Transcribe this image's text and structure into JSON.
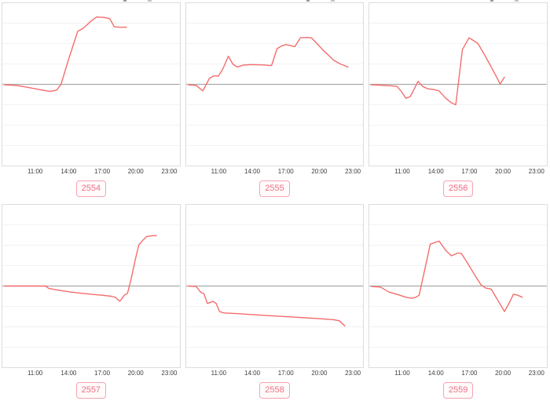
{
  "page": {
    "background": "#ffffff"
  },
  "colors": {
    "line": "#f56c6c",
    "zero_line": "#aaaaaa",
    "grid_line": "#f2f2f2",
    "chart_border": "#dcdcdc",
    "tick_text": "#3d3d3d",
    "badge_border": "#f6a3b3",
    "badge_text": "#ee7082"
  },
  "chart_data": [
    {
      "name": "2554",
      "type": "line",
      "x_unit": "hour_of_day",
      "x_range": [
        8,
        24
      ],
      "x_ticks": [
        "11:00",
        "14:00",
        "17:00",
        "20:00",
        "23:00"
      ],
      "x_tick_hours": [
        11,
        14,
        17,
        20,
        23
      ],
      "y_range": [
        -4,
        4
      ],
      "baseline": 0,
      "grid_step": 1,
      "points": [
        [
          8.2,
          -0.02
        ],
        [
          9.2,
          -0.05
        ],
        [
          10.0,
          -0.12
        ],
        [
          11.0,
          -0.22
        ],
        [
          12.3,
          -0.35
        ],
        [
          12.9,
          -0.28
        ],
        [
          13.3,
          0.0
        ],
        [
          13.9,
          1.1
        ],
        [
          14.8,
          2.6
        ],
        [
          15.3,
          2.75
        ],
        [
          16.0,
          3.1
        ],
        [
          16.5,
          3.3
        ],
        [
          17.2,
          3.28
        ],
        [
          17.7,
          3.22
        ],
        [
          18.1,
          2.82
        ],
        [
          18.6,
          2.8
        ],
        [
          19.2,
          2.8
        ]
      ]
    },
    {
      "name": "2555",
      "type": "line",
      "x_unit": "hour_of_day",
      "x_range": [
        8,
        24
      ],
      "x_ticks": [
        "11:00",
        "14:00",
        "17:00",
        "20:00",
        "23:00"
      ],
      "x_tick_hours": [
        11,
        14,
        17,
        20,
        23
      ],
      "y_range": [
        -4,
        4
      ],
      "baseline": 0,
      "grid_step": 1,
      "points": [
        [
          8.2,
          -0.02
        ],
        [
          8.9,
          -0.05
        ],
        [
          9.5,
          -0.32
        ],
        [
          10.1,
          0.3
        ],
        [
          10.5,
          0.42
        ],
        [
          10.9,
          0.4
        ],
        [
          11.3,
          0.75
        ],
        [
          11.8,
          1.38
        ],
        [
          12.2,
          1.0
        ],
        [
          12.6,
          0.85
        ],
        [
          13.2,
          0.95
        ],
        [
          14.0,
          0.97
        ],
        [
          15.0,
          0.95
        ],
        [
          15.7,
          0.92
        ],
        [
          16.2,
          1.75
        ],
        [
          16.6,
          1.88
        ],
        [
          17.0,
          1.95
        ],
        [
          17.4,
          1.9
        ],
        [
          17.8,
          1.85
        ],
        [
          18.3,
          2.28
        ],
        [
          18.9,
          2.3
        ],
        [
          19.3,
          2.28
        ],
        [
          19.8,
          2.0
        ],
        [
          20.3,
          1.7
        ],
        [
          20.8,
          1.45
        ],
        [
          21.3,
          1.18
        ],
        [
          21.9,
          1.0
        ],
        [
          22.6,
          0.85
        ]
      ]
    },
    {
      "name": "2556",
      "type": "line",
      "x_unit": "hour_of_day",
      "x_range": [
        8,
        24
      ],
      "x_ticks": [
        "11:00",
        "14:00",
        "17:00",
        "20:00",
        "23:00"
      ],
      "x_tick_hours": [
        11,
        14,
        17,
        20,
        23
      ],
      "y_range": [
        -4,
        4
      ],
      "baseline": 0,
      "grid_step": 1,
      "points": [
        [
          8.2,
          -0.02
        ],
        [
          9.3,
          -0.05
        ],
        [
          10.1,
          -0.08
        ],
        [
          10.5,
          -0.1
        ],
        [
          10.9,
          -0.35
        ],
        [
          11.3,
          -0.68
        ],
        [
          11.7,
          -0.6
        ],
        [
          12.1,
          -0.18
        ],
        [
          12.4,
          0.15
        ],
        [
          12.8,
          -0.1
        ],
        [
          13.3,
          -0.22
        ],
        [
          13.8,
          -0.25
        ],
        [
          14.3,
          -0.32
        ],
        [
          14.9,
          -0.68
        ],
        [
          15.4,
          -0.9
        ],
        [
          15.8,
          -1.0
        ],
        [
          16.4,
          1.7
        ],
        [
          17.0,
          2.28
        ],
        [
          17.4,
          2.15
        ],
        [
          17.8,
          2.0
        ],
        [
          18.4,
          1.45
        ],
        [
          19.0,
          0.85
        ],
        [
          19.5,
          0.35
        ],
        [
          19.8,
          0.02
        ],
        [
          20.2,
          0.35
        ]
      ]
    },
    {
      "name": "2557",
      "type": "line",
      "x_unit": "hour_of_day",
      "x_range": [
        8,
        24
      ],
      "x_ticks": [
        "11:00",
        "14:00",
        "17:00",
        "20:00",
        "23:00"
      ],
      "x_tick_hours": [
        11,
        14,
        17,
        20,
        23
      ],
      "y_range": [
        -4,
        4
      ],
      "baseline": 0,
      "grid_step": 1,
      "points": [
        [
          8.2,
          0.0
        ],
        [
          9.5,
          0.0
        ],
        [
          10.8,
          0.0
        ],
        [
          11.9,
          0.0
        ],
        [
          12.2,
          -0.12
        ],
        [
          13.0,
          -0.2
        ],
        [
          14.0,
          -0.28
        ],
        [
          15.0,
          -0.35
        ],
        [
          16.0,
          -0.4
        ],
        [
          17.0,
          -0.45
        ],
        [
          17.8,
          -0.5
        ],
        [
          18.2,
          -0.55
        ],
        [
          18.6,
          -0.75
        ],
        [
          19.0,
          -0.45
        ],
        [
          19.3,
          -0.35
        ],
        [
          19.6,
          0.3
        ],
        [
          20.0,
          1.3
        ],
        [
          20.3,
          2.0
        ],
        [
          20.6,
          2.2
        ],
        [
          21.0,
          2.42
        ],
        [
          21.5,
          2.47
        ],
        [
          21.9,
          2.47
        ]
      ]
    },
    {
      "name": "2558",
      "type": "line",
      "x_unit": "hour_of_day",
      "x_range": [
        8,
        24
      ],
      "x_ticks": [
        "11:00",
        "14:00",
        "17:00",
        "20:00",
        "23:00"
      ],
      "x_tick_hours": [
        11,
        14,
        17,
        20,
        23
      ],
      "y_range": [
        -4,
        4
      ],
      "baseline": 0,
      "grid_step": 1,
      "points": [
        [
          8.2,
          0.0
        ],
        [
          8.9,
          -0.02
        ],
        [
          9.3,
          -0.3
        ],
        [
          9.6,
          -0.38
        ],
        [
          9.9,
          -0.85
        ],
        [
          10.2,
          -0.8
        ],
        [
          10.4,
          -0.75
        ],
        [
          10.7,
          -0.85
        ],
        [
          11.0,
          -1.25
        ],
        [
          11.4,
          -1.32
        ],
        [
          12.5,
          -1.35
        ],
        [
          14.0,
          -1.4
        ],
        [
          16.0,
          -1.47
        ],
        [
          18.0,
          -1.53
        ],
        [
          20.0,
          -1.6
        ],
        [
          21.3,
          -1.65
        ],
        [
          21.8,
          -1.7
        ],
        [
          22.3,
          -1.95
        ]
      ]
    },
    {
      "name": "2559",
      "type": "line",
      "x_unit": "hour_of_day",
      "x_range": [
        8,
        24
      ],
      "x_ticks": [
        "11:00",
        "14:00",
        "17:00",
        "20:00",
        "23:00"
      ],
      "x_tick_hours": [
        11,
        14,
        17,
        20,
        23
      ],
      "y_range": [
        -4,
        4
      ],
      "baseline": 0,
      "grid_step": 1,
      "points": [
        [
          8.2,
          -0.02
        ],
        [
          9.0,
          -0.05
        ],
        [
          9.8,
          -0.3
        ],
        [
          10.6,
          -0.42
        ],
        [
          11.3,
          -0.55
        ],
        [
          11.8,
          -0.6
        ],
        [
          12.2,
          -0.55
        ],
        [
          12.5,
          -0.45
        ],
        [
          13.0,
          0.8
        ],
        [
          13.5,
          2.05
        ],
        [
          14.0,
          2.15
        ],
        [
          14.3,
          2.2
        ],
        [
          14.9,
          1.75
        ],
        [
          15.4,
          1.48
        ],
        [
          16.0,
          1.62
        ],
        [
          16.3,
          1.6
        ],
        [
          16.9,
          1.1
        ],
        [
          17.5,
          0.55
        ],
        [
          18.1,
          0.05
        ],
        [
          18.5,
          -0.1
        ],
        [
          19.0,
          -0.15
        ],
        [
          19.6,
          -0.7
        ],
        [
          20.2,
          -1.25
        ],
        [
          20.7,
          -0.75
        ],
        [
          21.0,
          -0.4
        ],
        [
          21.4,
          -0.45
        ],
        [
          21.8,
          -0.55
        ]
      ]
    }
  ]
}
